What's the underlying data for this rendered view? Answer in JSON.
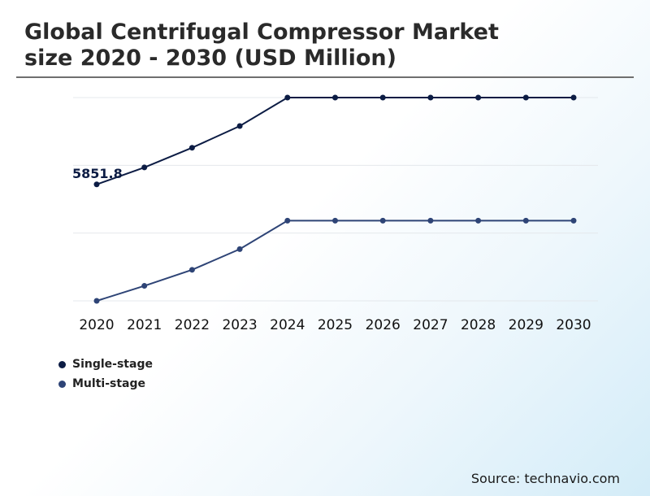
{
  "title": "Global Centrifugal Compressor Market\nsize 2020 - 2030 (USD Million)",
  "source": "Source: technavio.com",
  "chart_data": {
    "type": "line",
    "title": "Global Centrifugal Compressor Market size 2020 - 2030 (USD Million)",
    "x": [
      "2020",
      "2021",
      "2022",
      "2023",
      "2024",
      "2025",
      "2026",
      "2027",
      "2028",
      "2029",
      "2030"
    ],
    "series": [
      {
        "name": "Single-stage",
        "color": "#0c1c44",
        "values": [
          5851.8,
          6180,
          6560,
          6980,
          7530,
          7530,
          7530,
          7530,
          7530,
          7530,
          7530
        ]
      },
      {
        "name": "Multi-stage",
        "color": "#2e4476",
        "values": [
          3600,
          3890,
          4200,
          4600,
          5150,
          5150,
          5150,
          5150,
          5150,
          5150,
          5150
        ]
      }
    ],
    "data_labels": [
      {
        "series": 0,
        "index": 0,
        "text": "5851.8"
      }
    ],
    "ylim": [
      3600,
      7530
    ],
    "yaxis_labels_visible": false,
    "grid": true,
    "legend_position": "bottom-left"
  }
}
